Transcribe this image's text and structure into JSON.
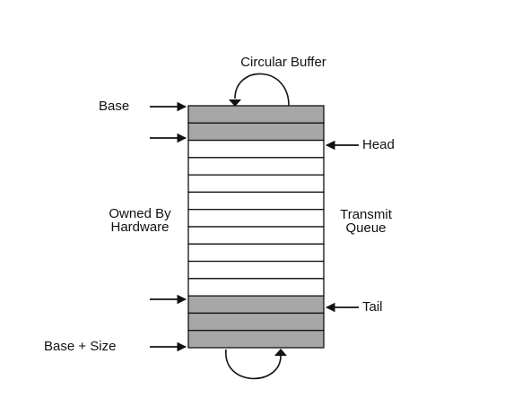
{
  "labels": {
    "circular_buffer": "Circular Buffer",
    "base": "Base",
    "head": "Head",
    "owned_by_line1": "Owned By",
    "owned_by_line2": "Hardware",
    "transmit_line1": "Transmit",
    "transmit_line2": "Queue",
    "tail": "Tail",
    "base_plus_size": "Base + Size"
  },
  "colors": {
    "filled_slot": "#a7a7a7",
    "empty_slot": "#ffffff",
    "outline": "#111111"
  },
  "queue": {
    "slot_count": 14,
    "filled_slots": [
      0,
      1,
      11,
      12,
      13
    ],
    "head_slot": 2,
    "tail_slot": 11
  }
}
